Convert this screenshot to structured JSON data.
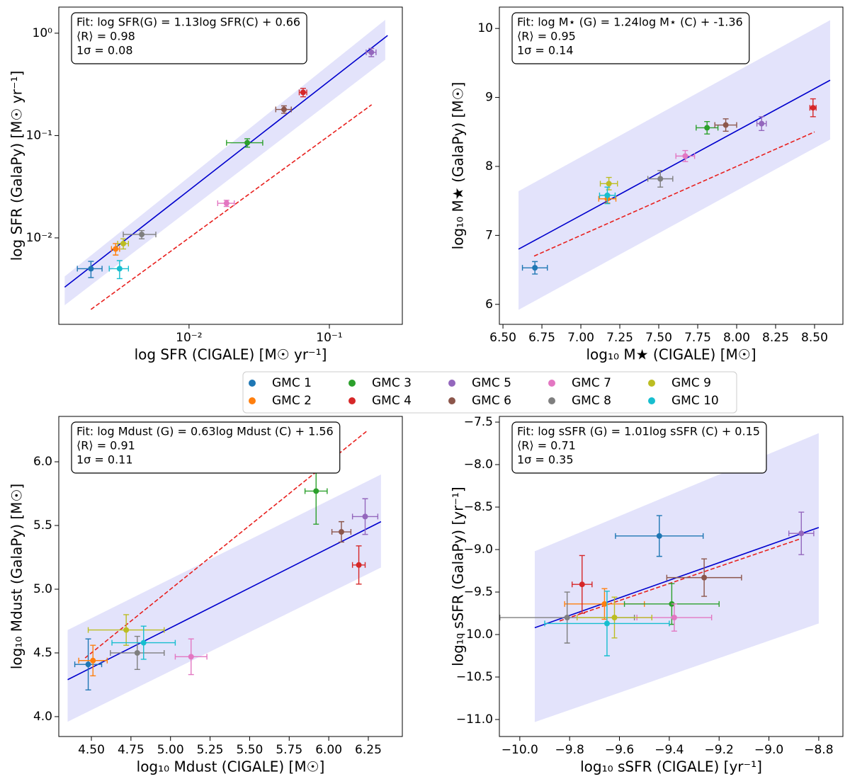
{
  "legend": {
    "entries": [
      {
        "name": "GMC 1",
        "color": "#1f77b4"
      },
      {
        "name": "GMC 2",
        "color": "#ff7f0e"
      },
      {
        "name": "GMC 3",
        "color": "#2ca02c"
      },
      {
        "name": "GMC 4",
        "color": "#d62728"
      },
      {
        "name": "GMC 5",
        "color": "#9467bd"
      },
      {
        "name": "GMC 6",
        "color": "#8c564b"
      },
      {
        "name": "GMC 7",
        "color": "#e377c2"
      },
      {
        "name": "GMC 8",
        "color": "#7f7f7f"
      },
      {
        "name": "GMC 9",
        "color": "#bcbd22"
      },
      {
        "name": "GMC 10",
        "color": "#17becf"
      }
    ]
  },
  "chart_data": [
    {
      "type": "scatter",
      "xscale": "log",
      "yscale": "log",
      "xlabel": "log SFR (CIGALE) [M☉ yr⁻¹]",
      "ylabel": "log SFR (GalaPy) [M☉ yr⁻¹]",
      "annotations": [
        "Fit: log SFR(G) = 1.13log SFR(C) + 0.66",
        "⟨R⟩ = 0.98",
        "1σ = 0.08"
      ],
      "x": [
        0.002,
        0.003,
        0.026,
        0.065,
        0.199,
        0.0475,
        0.0185,
        0.0046,
        0.0034,
        0.0032
      ],
      "xerr": [
        0.0004,
        0.0002,
        0.0075,
        0.004,
        0.016,
        0.006,
        0.0025,
        0.0012,
        0.0003,
        0.0005
      ],
      "values": [
        0.005,
        0.0078,
        0.085,
        0.264,
        0.65,
        0.18,
        0.0218,
        0.0108,
        0.0088,
        0.005
      ],
      "yerr": [
        0.0009,
        0.001,
        0.008,
        0.025,
        0.06,
        0.015,
        0.0015,
        0.001,
        0.001,
        0.001
      ],
      "fit": {
        "x": [
          0.0013,
          0.26
        ],
        "values": [
          0.0033,
          0.95
        ],
        "color": "#0000cd"
      },
      "one_to_one": {
        "x": [
          0.002,
          0.2
        ],
        "values": [
          0.002,
          0.2
        ],
        "color": "#e8201e"
      },
      "band": {
        "x": [
          0.0013,
          0.25
        ],
        "upper": [
          0.0042,
          1.35
        ],
        "lower": [
          0.0022,
          0.55
        ],
        "color": "#e3e3fb"
      },
      "xlim": [
        0.00118,
        0.331
      ],
      "ylim": [
        0.00143,
        1.8
      ],
      "xticks": [
        {
          "value": 0.01,
          "label": "10⁻²"
        },
        {
          "value": 0.1,
          "label": "10⁻¹"
        }
      ],
      "yticks": [
        {
          "value": 0.01,
          "label": "10⁻²"
        },
        {
          "value": 0.1,
          "label": "10⁻¹"
        },
        {
          "value": 1,
          "label": "10⁰"
        }
      ]
    },
    {
      "type": "scatter",
      "xlabel": "log₁₀ M★ (CIGALE) [M☉]",
      "ylabel": "log₁₀ M★ (GalaPy) [M☉]",
      "annotations": [
        "Fit: log M⋆ (G) = 1.24log M⋆ (C) + -1.36",
        "⟨R⟩ = 0.95",
        "1σ = 0.14"
      ],
      "x": [
        6.705,
        7.17,
        7.81,
        8.49,
        8.16,
        7.93,
        7.67,
        7.51,
        7.18,
        7.17
      ],
      "xerr": [
        0.08,
        0.055,
        0.07,
        0.02,
        0.03,
        0.07,
        0.06,
        0.08,
        0.055,
        0.05
      ],
      "values": [
        6.53,
        7.53,
        8.56,
        8.85,
        8.62,
        8.6,
        8.15,
        7.82,
        7.75,
        7.58
      ],
      "yerr": [
        0.09,
        0.06,
        0.09,
        0.13,
        0.1,
        0.09,
        0.08,
        0.12,
        0.09,
        0.12
      ],
      "fit": {
        "x": [
          6.6,
          8.6
        ],
        "values": [
          6.8,
          9.25
        ],
        "color": "#0000cd"
      },
      "one_to_one": {
        "x": [
          6.7,
          8.5
        ],
        "values": [
          6.7,
          8.5
        ],
        "color": "#e8201e"
      },
      "band": {
        "x": [
          6.6,
          8.6
        ],
        "upper": [
          7.64,
          10.12
        ],
        "lower": [
          5.92,
          8.39
        ],
        "color": "#e3e3fb"
      },
      "xlim": [
        6.477,
        8.682
      ],
      "ylim": [
        5.71,
        10.31
      ],
      "xticks": [
        {
          "value": 6.5,
          "label": "6.50"
        },
        6.75,
        {
          "value": 7.0,
          "label": "7.00"
        },
        7.25,
        {
          "value": 7.5,
          "label": "7.50"
        },
        7.75,
        {
          "value": 8.0,
          "label": "8.00"
        },
        8.25,
        {
          "value": 8.5,
          "label": "8.50"
        }
      ],
      "yticks": [
        6,
        7,
        8,
        9,
        10
      ]
    },
    {
      "type": "scatter",
      "xlabel": "log₁₀ Mdust (CIGALE) [M☉]",
      "ylabel": "log₁₀ Mdust (GalaPy) [M☉]",
      "annotations": [
        "Fit: log Mdust (G) = 0.63log Mdust (C) + 1.56",
        "⟨R⟩ = 0.91",
        "1σ = 0.11"
      ],
      "x": [
        4.48,
        4.51,
        5.92,
        6.19,
        6.23,
        6.08,
        5.13,
        4.79,
        4.72,
        4.83
      ],
      "xerr": [
        0.085,
        0.09,
        0.07,
        0.04,
        0.08,
        0.06,
        0.1,
        0.17,
        0.24,
        0.2
      ],
      "values": [
        4.41,
        4.44,
        5.77,
        5.19,
        5.57,
        5.45,
        4.47,
        4.5,
        4.68,
        4.58
      ],
      "yerr": [
        0.2,
        0.12,
        0.26,
        0.15,
        0.14,
        0.08,
        0.14,
        0.13,
        0.12,
        0.13
      ],
      "fit": {
        "x": [
          4.35,
          6.33
        ],
        "values": [
          4.29,
          5.53
        ],
        "color": "#0000cd"
      },
      "one_to_one": {
        "x": [
          4.46,
          6.24
        ],
        "values": [
          4.46,
          6.24
        ],
        "color": "#e8201e"
      },
      "band": {
        "x": [
          4.35,
          6.33
        ],
        "upper": [
          4.68,
          5.9
        ],
        "lower": [
          3.96,
          5.17
        ],
        "color": "#e3e3fb"
      },
      "xlim": [
        4.294,
        6.465
      ],
      "ylim": [
        3.844,
        6.356
      ],
      "xticks": [
        {
          "value": 4.5,
          "label": "4.50"
        },
        4.75,
        {
          "value": 5.0,
          "label": "5.00"
        },
        5.25,
        {
          "value": 5.5,
          "label": "5.50"
        },
        5.75,
        {
          "value": 6.0,
          "label": "6.00"
        },
        6.25
      ],
      "yticks": [
        {
          "value": 4,
          "label": "4.0"
        },
        4.5,
        {
          "value": 5,
          "label": "5.0"
        },
        5.5,
        {
          "value": 6,
          "label": "6.0"
        }
      ]
    },
    {
      "type": "scatter",
      "xlabel": "log₁₀ sSFR (CIGALE) [yr⁻¹]",
      "ylabel": "log₁₀ sSFR (GalaPy) [yr⁻¹]",
      "annotations": [
        "Fit: log sSFR (G) = 1.01log sSFR (C) + 0.15",
        "⟨R⟩ = 0.71",
        "1σ = 0.35"
      ],
      "x": [
        -9.44,
        -9.66,
        -9.39,
        -9.75,
        -8.87,
        -9.26,
        -9.38,
        -9.81,
        -9.62,
        -9.65
      ],
      "xerr": [
        0.176,
        0.16,
        0.19,
        0.04,
        0.05,
        0.15,
        0.15,
        0.27,
        0.15,
        0.25
      ],
      "values": [
        -8.84,
        -9.64,
        -9.64,
        -9.41,
        -8.81,
        -9.33,
        -9.8,
        -9.8,
        -9.8,
        -9.87
      ],
      "yerr": [
        0.24,
        0.18,
        0.24,
        0.34,
        0.25,
        0.22,
        0.16,
        0.3,
        0.24,
        0.38
      ],
      "fit": {
        "x": [
          -9.94,
          -8.8
        ],
        "values": [
          -9.92,
          -8.74
        ],
        "color": "#0000cd"
      },
      "one_to_one": {
        "x": [
          -9.84,
          -8.87
        ],
        "values": [
          -9.84,
          -8.87
        ],
        "color": "#e8201e"
      },
      "band": {
        "x": [
          -9.94,
          -8.8
        ],
        "upper": [
          -9.02,
          -7.63
        ],
        "lower": [
          -11.03,
          -9.87
        ],
        "color": "#e3e3fb"
      },
      "xlim": [
        -10.082,
        -8.703
      ],
      "ylim": [
        -11.2,
        -7.433
      ],
      "xticks": [
        {
          "value": -10,
          "label": "−10.0"
        },
        {
          "value": -9.8,
          "label": "−9.8"
        },
        {
          "value": -9.6,
          "label": "−9.6"
        },
        {
          "value": -9.4,
          "label": "−9.4"
        },
        {
          "value": -9.2,
          "label": "−9.2"
        },
        {
          "value": -9,
          "label": "−9.0"
        },
        {
          "value": -8.8,
          "label": "−8.8"
        }
      ],
      "yticks": [
        {
          "value": -7.5,
          "label": "−7.5"
        },
        {
          "value": -8,
          "label": "−8.0"
        },
        {
          "value": -8.5,
          "label": "−8.5"
        },
        {
          "value": -9,
          "label": "−9.0"
        },
        {
          "value": -9.5,
          "label": "−9.5"
        },
        {
          "value": -10,
          "label": "−10.0"
        },
        {
          "value": -10.5,
          "label": "−10.5"
        },
        {
          "value": -11,
          "label": "−11.0"
        }
      ]
    }
  ]
}
